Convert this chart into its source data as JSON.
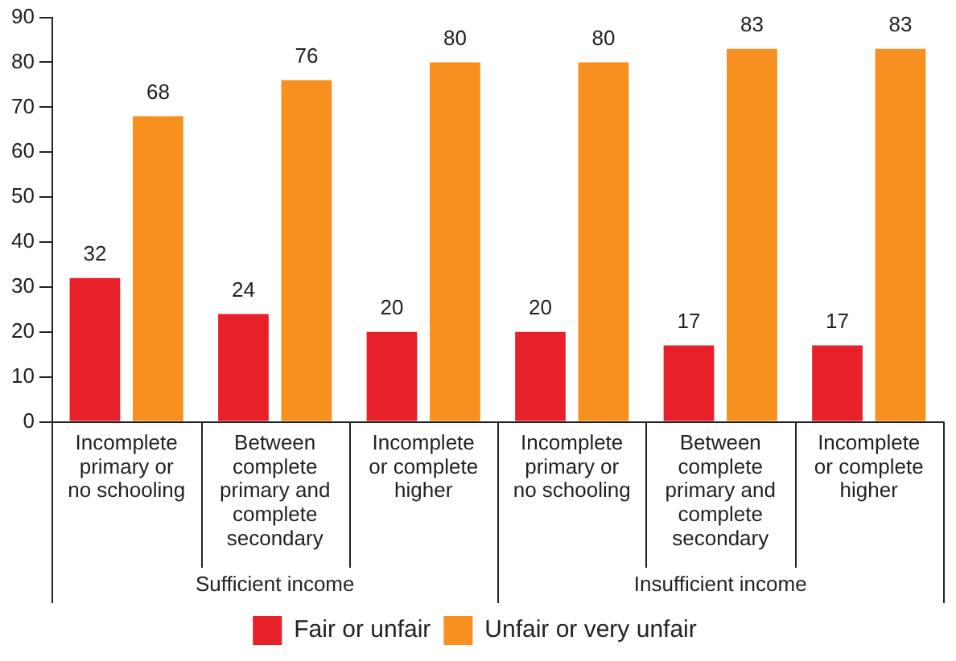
{
  "chart_data": {
    "type": "bar",
    "categories": [
      "Incomplete primary or no schooling",
      "Between complete primary and complete secondary",
      "Incomplete or complete higher",
      "Incomplete primary or no schooling",
      "Between complete primary and complete secondary",
      "Incomplete or complete higher"
    ],
    "series": [
      {
        "name": "Fair or unfair",
        "color": "#e8202a",
        "values": [
          32,
          24,
          20,
          20,
          17,
          17
        ]
      },
      {
        "name": "Unfair or very unfair",
        "color": "#f7901e",
        "values": [
          68,
          76,
          80,
          80,
          83,
          83
        ]
      }
    ],
    "ylim": [
      0,
      90
    ],
    "yticks": [
      0,
      10,
      20,
      30,
      40,
      50,
      60,
      70,
      80,
      90
    ],
    "annotations": [
      "Sufficient income",
      "Insufficient income"
    ],
    "data_labels": true,
    "grid": false,
    "legend": "bottom"
  }
}
